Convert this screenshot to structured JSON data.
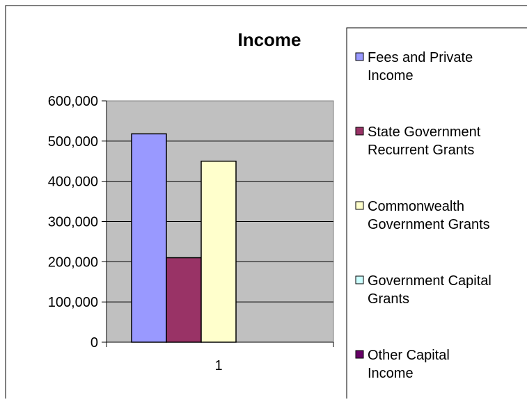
{
  "chart_data": {
    "type": "bar",
    "title": "Income",
    "categories": [
      "1"
    ],
    "series": [
      {
        "name": "Fees and Private Income",
        "values": [
          518000
        ],
        "color": "#9999ff"
      },
      {
        "name": "State Government Recurrent Grants",
        "values": [
          210000
        ],
        "color": "#993366"
      },
      {
        "name": "Commonwealth Government Grants",
        "values": [
          450000
        ],
        "color": "#ffffcc"
      },
      {
        "name": "Government Capital Grants",
        "values": [
          0
        ],
        "color": "#ccffff"
      },
      {
        "name": "Other Capital Income",
        "values": [
          0
        ],
        "color": "#660066"
      }
    ],
    "ylim": [
      0,
      600000
    ],
    "yticks": [
      "0",
      "100,000",
      "200,000",
      "300,000",
      "400,000",
      "500,000",
      "600,000"
    ],
    "xlabel": "",
    "ylabel": "",
    "grid": true,
    "plot_background": "#c0c0c0",
    "legend_position": "right"
  }
}
